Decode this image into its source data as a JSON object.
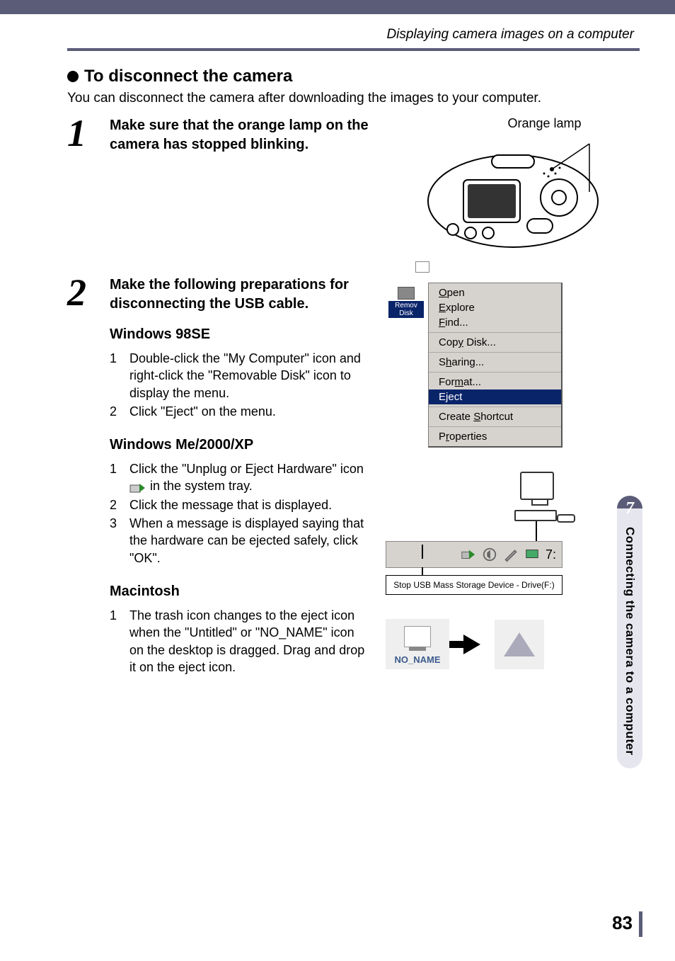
{
  "colors": {
    "accent": "#5a5c78",
    "menu_bg": "#d6d3ce",
    "menu_highlight_bg": "#0a246a",
    "menu_highlight_fg": "#ffffff",
    "page_bg": "#ffffff",
    "text": "#000000",
    "sidebar_bg": "#e6e6ee"
  },
  "header": {
    "running_title": "Displaying camera images on a computer"
  },
  "title": "To disconnect the camera",
  "intro": "You can disconnect the camera after downloading the images to your computer.",
  "step1": {
    "num": "1",
    "heading": "Make sure that the orange lamp on the camera has stopped blinking.",
    "fig_label": "Orange lamp"
  },
  "step2": {
    "num": "2",
    "heading": "Make the following preparations for disconnecting the USB cable.",
    "win98": {
      "title": "Windows 98SE",
      "items": [
        "Double-click the \"My Computer\" icon and right-click the \"Removable Disk\" icon to display the menu.",
        "Click \"Eject\" on the menu."
      ]
    },
    "winme": {
      "title": "Windows Me/2000/XP",
      "item1_a": "Click the \"Unplug or Eject Hardware\" icon",
      "item1_b": "in the system tray.",
      "item2": "Click the message that is displayed.",
      "item3": "When a message is displayed saying that the hardware can be ejected safely, click \"OK\"."
    },
    "mac": {
      "title": "Macintosh",
      "item1": "The trash icon changes to the eject icon when the \"Untitled\" or \"NO_NAME\" icon on the desktop is dragged. Drag and drop it on the eject icon."
    }
  },
  "context_menu": {
    "disk_label": "Remov Disk",
    "sections": [
      [
        "Open",
        "Explore",
        "Find..."
      ],
      [
        "Copy Disk..."
      ],
      [
        "Sharing..."
      ],
      [
        "Format...",
        "Eject"
      ],
      [
        "Create Shortcut"
      ],
      [
        "Properties"
      ]
    ],
    "highlighted": "Eject",
    "underline_map": {
      "Open": 0,
      "Explore": 0,
      "Find...": 0,
      "Copy Disk...": 3,
      "Sharing...": 1,
      "Format...": 3,
      "Eject": 1,
      "Create Shortcut": 7,
      "Properties": 1
    }
  },
  "tray": {
    "time": "7:",
    "balloon": "Stop USB Mass Storage Device - Drive(F:)"
  },
  "mac_fig": {
    "disk_label": "NO_NAME"
  },
  "side": {
    "chapter_num": "7",
    "chapter_title": "Connecting the camera to a computer"
  },
  "page_number": "83"
}
